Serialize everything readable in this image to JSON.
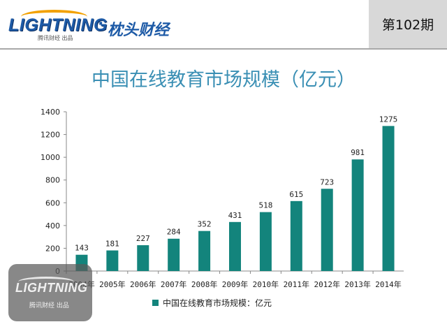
{
  "header": {
    "brand": "LIGHTNING",
    "brand_separator": "·",
    "brand_cn": "枕头财经",
    "brand_sub": "腾讯财经 出品",
    "issue": "第102期",
    "brand_color": "#1d5aa6",
    "accent_color": "#f2a100"
  },
  "watermark": {
    "brand": "LIGHTNING",
    "sub": "腾讯财经 出品"
  },
  "chart_data": {
    "type": "bar",
    "title": "中国在线教育市场规模（亿元）",
    "categories": [
      "2004年",
      "2005年",
      "2006年",
      "2007年",
      "2008年",
      "2009年",
      "2010年",
      "2011年",
      "2012年",
      "2013年",
      "2014年"
    ],
    "series": [
      {
        "name": "中国在线教育市场规模：亿元",
        "values": [
          143,
          181,
          227,
          284,
          352,
          431,
          518,
          615,
          723,
          981,
          1275
        ],
        "color": "#13847c"
      }
    ],
    "ylim": [
      0,
      1400
    ],
    "yticks": [
      0,
      200,
      400,
      600,
      800,
      1000,
      1200,
      1400
    ],
    "xlabel": "",
    "ylabel": "",
    "grid": false,
    "legend": "bottom",
    "data_labels": true
  }
}
